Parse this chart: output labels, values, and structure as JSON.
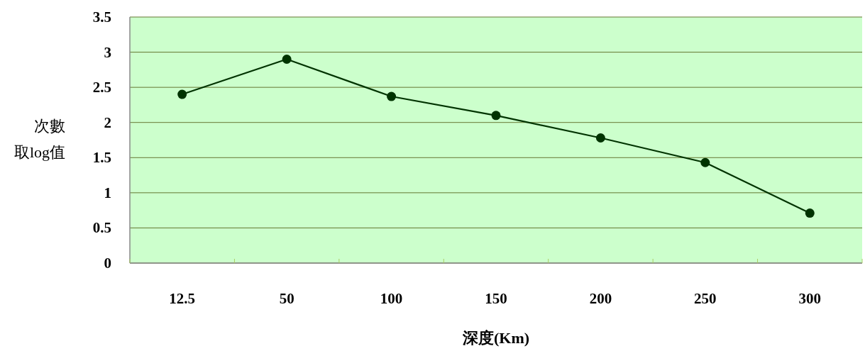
{
  "chart_data": {
    "type": "line",
    "xlabel": "深度(Km)",
    "ylabel": "次數取log值",
    "categories": [
      "12.5",
      "50",
      "100",
      "150",
      "200",
      "250",
      "300"
    ],
    "series": [
      {
        "color": "#003300",
        "values": [
          2.4,
          2.9,
          2.37,
          2.1,
          1.78,
          1.43,
          0.71
        ]
      }
    ],
    "ylim": [
      0,
      3.5
    ],
    "yticks": [
      0,
      0.5,
      1,
      1.5,
      2,
      2.5,
      3,
      3.5
    ],
    "grid": "y",
    "marker": "circle",
    "line_style": "solid"
  }
}
